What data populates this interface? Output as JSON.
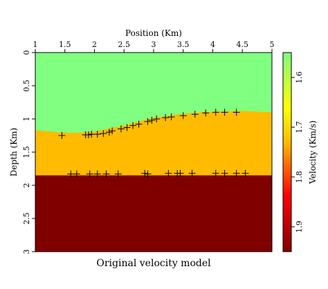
{
  "chart_data": {
    "type": "heatmap",
    "title": "Original velocity model",
    "xlabel": "Position (Km)",
    "ylabel": "Depth (Km)",
    "xlim": [
      1,
      5
    ],
    "ylim": [
      0,
      3
    ],
    "x_ticks": [
      "1",
      "1.5",
      "2",
      "2.5",
      "3",
      "3.5",
      "4",
      "4.5",
      "5"
    ],
    "y_ticks": [
      "0",
      "0.5",
      "1",
      "1.5",
      "2",
      "2.5",
      "3"
    ],
    "colorbar": {
      "label": "Velocity (Km/s)",
      "range": [
        1.55,
        1.95
      ],
      "ticks": [
        "1.6",
        "1.7",
        "1.8",
        "1.9"
      ],
      "colors": [
        "#80ff80",
        "#ffff00",
        "#ffbb00",
        "#ff0000",
        "#800000"
      ]
    },
    "layers": [
      {
        "velocity": 1.6,
        "color": "#80ff80"
      },
      {
        "velocity": 1.7,
        "color": "#ffbb00"
      },
      {
        "velocity": 1.9,
        "color": "#800000"
      }
    ],
    "interface_top": {
      "x": [
        1.0,
        1.4,
        1.7,
        2.0,
        2.5,
        3.0,
        3.5,
        4.0,
        4.5,
        5.0
      ],
      "y": [
        1.17,
        1.2,
        1.21,
        1.19,
        1.1,
        0.98,
        0.92,
        0.89,
        0.88,
        0.9
      ]
    },
    "interface_bottom_depth": 1.85,
    "markers": {
      "symbol": "+",
      "upper": [
        [
          1.45,
          1.25
        ],
        [
          1.85,
          1.24
        ],
        [
          1.9,
          1.24
        ],
        [
          1.95,
          1.23
        ],
        [
          2.05,
          1.23
        ],
        [
          2.15,
          1.22
        ],
        [
          2.25,
          1.2
        ],
        [
          2.3,
          1.18
        ],
        [
          2.45,
          1.15
        ],
        [
          2.55,
          1.13
        ],
        [
          2.65,
          1.1
        ],
        [
          2.75,
          1.08
        ],
        [
          2.9,
          1.04
        ],
        [
          2.97,
          1.02
        ],
        [
          3.05,
          1.0
        ],
        [
          3.2,
          0.98
        ],
        [
          3.3,
          0.97
        ],
        [
          3.5,
          0.95
        ],
        [
          3.7,
          0.93
        ],
        [
          3.88,
          0.91
        ],
        [
          4.05,
          0.9
        ],
        [
          4.2,
          0.9
        ],
        [
          4.4,
          0.9
        ]
      ],
      "lower": [
        [
          1.6,
          1.83
        ],
        [
          1.7,
          1.83
        ],
        [
          1.92,
          1.83
        ],
        [
          2.05,
          1.83
        ],
        [
          2.2,
          1.83
        ],
        [
          2.4,
          1.83
        ],
        [
          2.85,
          1.82
        ],
        [
          2.9,
          1.83
        ],
        [
          3.25,
          1.82
        ],
        [
          3.4,
          1.82
        ],
        [
          3.45,
          1.82
        ],
        [
          3.65,
          1.82
        ],
        [
          4.05,
          1.82
        ],
        [
          4.2,
          1.82
        ],
        [
          4.4,
          1.82
        ],
        [
          4.55,
          1.82
        ]
      ]
    }
  }
}
